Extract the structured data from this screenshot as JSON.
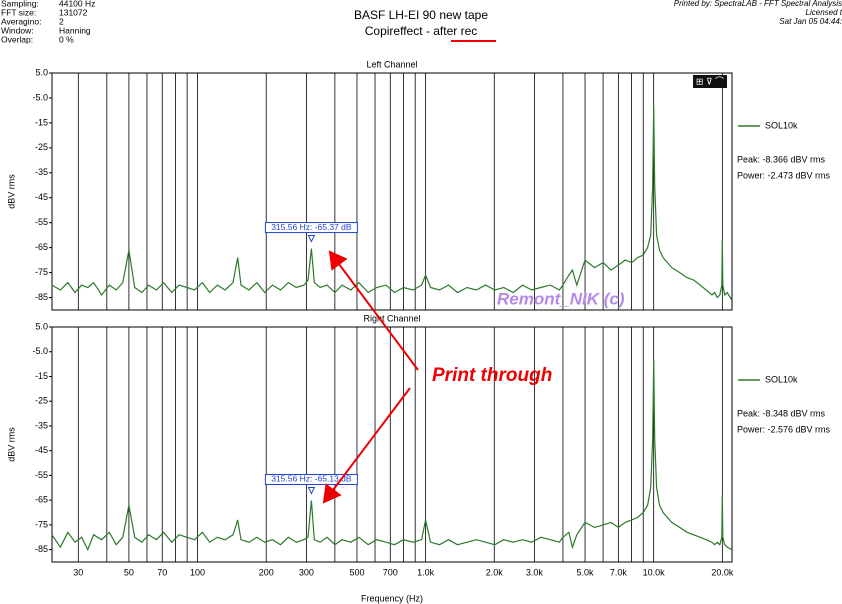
{
  "header": {
    "info": [
      [
        "Sampling:",
        "44100 Hz"
      ],
      [
        "FFT size:",
        "131072"
      ],
      [
        "Averagino:",
        "2"
      ],
      [
        "Window:",
        "Hanning"
      ],
      [
        "Overlap:",
        "0 %"
      ]
    ],
    "title": "BASF LH-EI 90 new tape",
    "subtitle_prefix": "Copireffect - ",
    "subtitle_emphasis": "after rec",
    "printed_by": "Printed by: SpectraLAB - FFT Spectral Analysis",
    "licensed": "Licensed t",
    "date": "Sat Jan 05 04:44:"
  },
  "watermark": "Remont_NIK (c)",
  "callout": "Print through",
  "chart_data": [
    {
      "type": "line",
      "title": "Left Channel",
      "y_label": "dBV rms",
      "xlim": [
        23,
        22050
      ],
      "ylim": [
        -90,
        5
      ],
      "log_x": true,
      "xgrid_minor": [
        40,
        60,
        80,
        90,
        400,
        600,
        800,
        900,
        4000,
        6000,
        8000,
        9000
      ],
      "yticks": [
        {
          "value": 5,
          "label": "5.0"
        },
        {
          "value": -5,
          "label": "-5.0"
        },
        -15,
        -25,
        -35,
        -45,
        -55,
        -65,
        -75,
        -85
      ],
      "x": [
        23,
        25,
        27,
        29,
        31,
        33,
        35,
        38,
        41,
        44,
        47,
        50,
        53,
        57,
        61,
        66,
        71,
        77,
        83,
        90,
        97,
        105,
        113,
        122,
        132,
        143,
        150,
        155,
        168,
        182,
        197,
        213,
        231,
        250,
        271,
        293,
        305,
        315.56,
        325,
        345,
        370,
        400,
        430,
        470,
        510,
        560,
        610,
        670,
        730,
        800,
        880,
        960,
        1000,
        1050,
        1150,
        1260,
        1380,
        1520,
        1670,
        1830,
        2010,
        2200,
        2420,
        2660,
        2920,
        3200,
        3520,
        3860,
        4000,
        4250,
        4400,
        4600,
        5000,
        5500,
        6000,
        6500,
        7000,
        7500,
        8000,
        8500,
        9000,
        9400,
        9700,
        9900,
        10000,
        10100,
        10300,
        10600,
        11000,
        12000,
        13000,
        14000,
        15000,
        16000,
        17000,
        18000,
        18500,
        19000,
        19500,
        19900,
        20000,
        20100,
        20500,
        21000,
        22000
      ],
      "series": [
        {
          "name": "SOL10k",
          "color": "#2c7a2c",
          "values": [
            -80,
            -82,
            -79,
            -83,
            -80,
            -81,
            -79,
            -84,
            -80,
            -82,
            -79,
            -66,
            -81,
            -83,
            -80,
            -82,
            -79,
            -83,
            -80,
            -81,
            -82,
            -79,
            -83,
            -80,
            -82,
            -79,
            -69,
            -80,
            -82,
            -79,
            -83,
            -80,
            -82,
            -79,
            -81,
            -80,
            -78,
            -65.37,
            -79,
            -81,
            -80,
            -83,
            -80,
            -82,
            -79,
            -83,
            -81,
            -80,
            -83,
            -81,
            -82,
            -80,
            -76,
            -81,
            -82,
            -80,
            -83,
            -81,
            -82,
            -80,
            -82,
            -81,
            -83,
            -80,
            -82,
            -81,
            -80,
            -82,
            -80,
            -76,
            -74,
            -80,
            -70,
            -73,
            -71,
            -74,
            -72,
            -70,
            -71,
            -69,
            -68,
            -65,
            -60,
            -40,
            -8.4,
            -40,
            -60,
            -66,
            -69,
            -73,
            -75,
            -77,
            -78,
            -80,
            -82,
            -84,
            -83,
            -85,
            -84,
            -80,
            -62,
            -80,
            -84,
            -83,
            -86
          ]
        }
      ],
      "marker_x": 315.56,
      "marker_label": "315.56 Hz: -65.37 dB",
      "peak_text": "Peak: -8.366 dBV rms",
      "power_text": "Power: -2.473 dBV rms"
    },
    {
      "type": "line",
      "title": "Right Channel",
      "y_label": "dBV rms",
      "x_label": "Frequency (Hz)",
      "xlim": [
        23,
        22050
      ],
      "ylim": [
        -90,
        5
      ],
      "log_x": true,
      "xgrid_minor": [
        40,
        60,
        80,
        90,
        400,
        600,
        800,
        900,
        4000,
        6000,
        8000,
        9000
      ],
      "xticks": [
        30,
        50,
        70,
        100,
        200,
        300,
        500,
        700,
        {
          "value": 1000,
          "label": "1.0k"
        },
        {
          "value": 2000,
          "label": "2.0k"
        },
        {
          "value": 3000,
          "label": "3.0k"
        },
        {
          "value": 5000,
          "label": "5.0k"
        },
        {
          "value": 7000,
          "label": "7.0k"
        },
        {
          "value": 10000,
          "label": "10.0k"
        },
        {
          "value": 20000,
          "label": "20.0k"
        }
      ],
      "yticks": [
        {
          "value": 5,
          "label": "5.0"
        },
        {
          "value": -5,
          "label": "-5.0"
        },
        -15,
        -25,
        -35,
        -45,
        -55,
        -65,
        -75,
        -85
      ],
      "x": [
        23,
        25,
        27,
        29,
        31,
        33,
        35,
        38,
        41,
        44,
        47,
        50,
        53,
        57,
        61,
        66,
        71,
        77,
        83,
        90,
        97,
        105,
        113,
        122,
        132,
        143,
        150,
        155,
        168,
        182,
        197,
        213,
        231,
        250,
        271,
        293,
        305,
        315.56,
        325,
        345,
        370,
        400,
        430,
        470,
        510,
        560,
        610,
        670,
        730,
        800,
        880,
        960,
        1000,
        1050,
        1150,
        1260,
        1380,
        1520,
        1670,
        1830,
        2010,
        2200,
        2420,
        2660,
        2920,
        3200,
        3520,
        3860,
        4000,
        4250,
        4400,
        4600,
        5000,
        5500,
        6000,
        6500,
        7000,
        7500,
        8000,
        8500,
        9000,
        9400,
        9700,
        9900,
        10000,
        10100,
        10300,
        10600,
        11000,
        12000,
        13000,
        14000,
        15000,
        16000,
        17000,
        18000,
        18500,
        19000,
        19500,
        19900,
        20000,
        20100,
        20500,
        21000,
        22000
      ],
      "series": [
        {
          "name": "SOL10k",
          "color": "#2c7a2c",
          "values": [
            -79,
            -84,
            -78,
            -82,
            -80,
            -85,
            -79,
            -81,
            -78,
            -83,
            -80,
            -67,
            -80,
            -82,
            -79,
            -81,
            -78,
            -82,
            -79,
            -80,
            -81,
            -78,
            -82,
            -80,
            -81,
            -79,
            -73,
            -81,
            -82,
            -80,
            -82,
            -81,
            -83,
            -80,
            -82,
            -81,
            -80,
            -65.13,
            -81,
            -82,
            -80,
            -83,
            -81,
            -82,
            -80,
            -83,
            -81,
            -82,
            -83,
            -81,
            -82,
            -81,
            -73,
            -82,
            -83,
            -81,
            -83,
            -82,
            -81,
            -82,
            -83,
            -81,
            -82,
            -81,
            -82,
            -80,
            -81,
            -82,
            -80,
            -78,
            -84,
            -79,
            -74,
            -76,
            -75,
            -74,
            -76,
            -74,
            -73,
            -72,
            -70,
            -67,
            -60,
            -40,
            -8.3,
            -40,
            -60,
            -67,
            -70,
            -74,
            -76,
            -78,
            -79,
            -80,
            -81,
            -82,
            -83,
            -82,
            -83,
            -80,
            -63,
            -80,
            -83,
            -84,
            -85
          ]
        }
      ],
      "marker_x": 315.56,
      "marker_label": "315.56 Hz: -65.13 dB",
      "peak_text": "Peak: -8.348 dBV rms",
      "power_text": "Power: -2.576 dBV rms"
    }
  ]
}
